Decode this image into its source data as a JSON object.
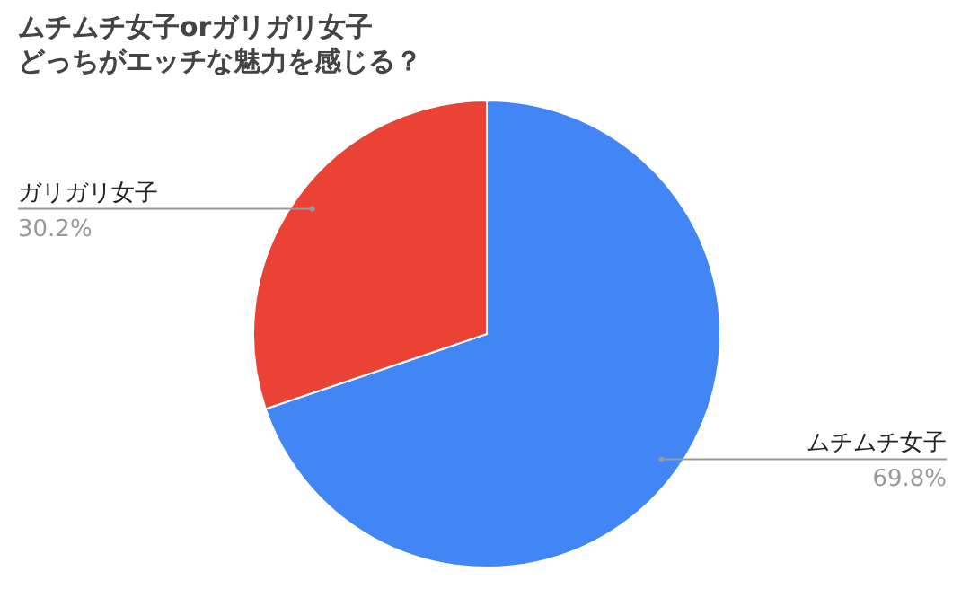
{
  "chart_data": {
    "type": "pie",
    "title": "ムチムチ女子orガリガリ女子",
    "subtitle": "どっちがエッチな魅力を感じる？",
    "categories": [
      "ムチムチ女子",
      "ガリガリ女子"
    ],
    "values": [
      69.8,
      30.2
    ],
    "value_labels": [
      "69.8%",
      "30.2%"
    ],
    "colors": [
      "#4285f4",
      "#ea4335"
    ]
  }
}
